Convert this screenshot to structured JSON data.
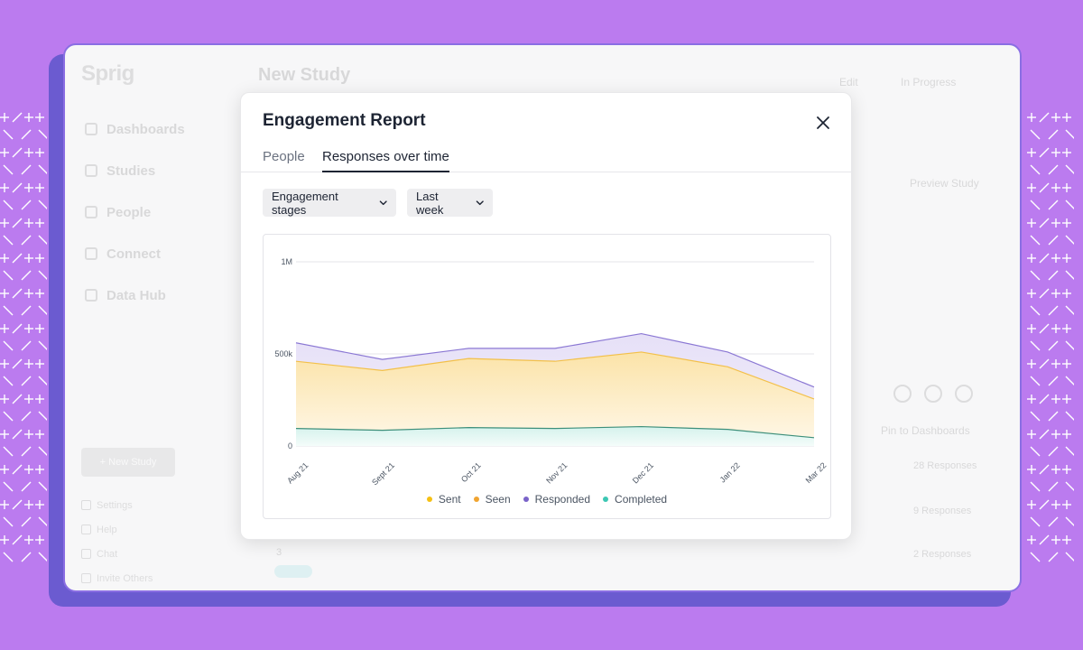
{
  "background_app": {
    "brand": "Sprig",
    "nav": [
      "Dashboards",
      "Studies",
      "People",
      "Connect",
      "Data Hub"
    ],
    "new_study_button": "+ New Study",
    "footer_links": [
      "Settings",
      "Help",
      "Chat",
      "Invite Others"
    ],
    "page_title": "New Study",
    "edit_label": "Edit",
    "status_label": "In Progress",
    "preview_label": "Preview Study",
    "pin_label": "Pin to Dashboards",
    "row_values": [
      "28 Responses",
      "9 Responses",
      "2 Responses"
    ],
    "row_number": "3"
  },
  "modal": {
    "title": "Engagement Report",
    "tabs": [
      {
        "label": "People",
        "active": false
      },
      {
        "label": "Responses over time",
        "active": true
      }
    ],
    "filters": {
      "stages": "Engagement stages",
      "period": "Last week"
    }
  },
  "colors": {
    "sent": "#f5c013",
    "seen": "#f0a431",
    "responded": "#7a63c9",
    "completed": "#3cc7b3",
    "accent_bg": "#bb7bef"
  },
  "chart_data": {
    "type": "area",
    "categories": [
      "Aug 21",
      "Sept 21",
      "Oct 21",
      "Nov 21",
      "Dec 21",
      "Jan 22",
      "Mar 22"
    ],
    "y_ticks": [
      "1M",
      "500k",
      "0"
    ],
    "ylim": [
      0,
      1000000
    ],
    "series": [
      {
        "name": "Sent",
        "values": [
          460000,
          410000,
          475000,
          460000,
          510000,
          430000,
          255000
        ]
      },
      {
        "name": "Seen",
        "values": [
          460000,
          410000,
          475000,
          460000,
          510000,
          430000,
          255000
        ]
      },
      {
        "name": "Responded",
        "values": [
          560000,
          470000,
          530000,
          530000,
          610000,
          510000,
          320000
        ]
      },
      {
        "name": "Completed",
        "values": [
          95000,
          85000,
          100000,
          95000,
          105000,
          90000,
          45000
        ]
      }
    ],
    "legend": [
      "Sent",
      "Seen",
      "Responded",
      "Completed"
    ],
    "grid": true
  }
}
